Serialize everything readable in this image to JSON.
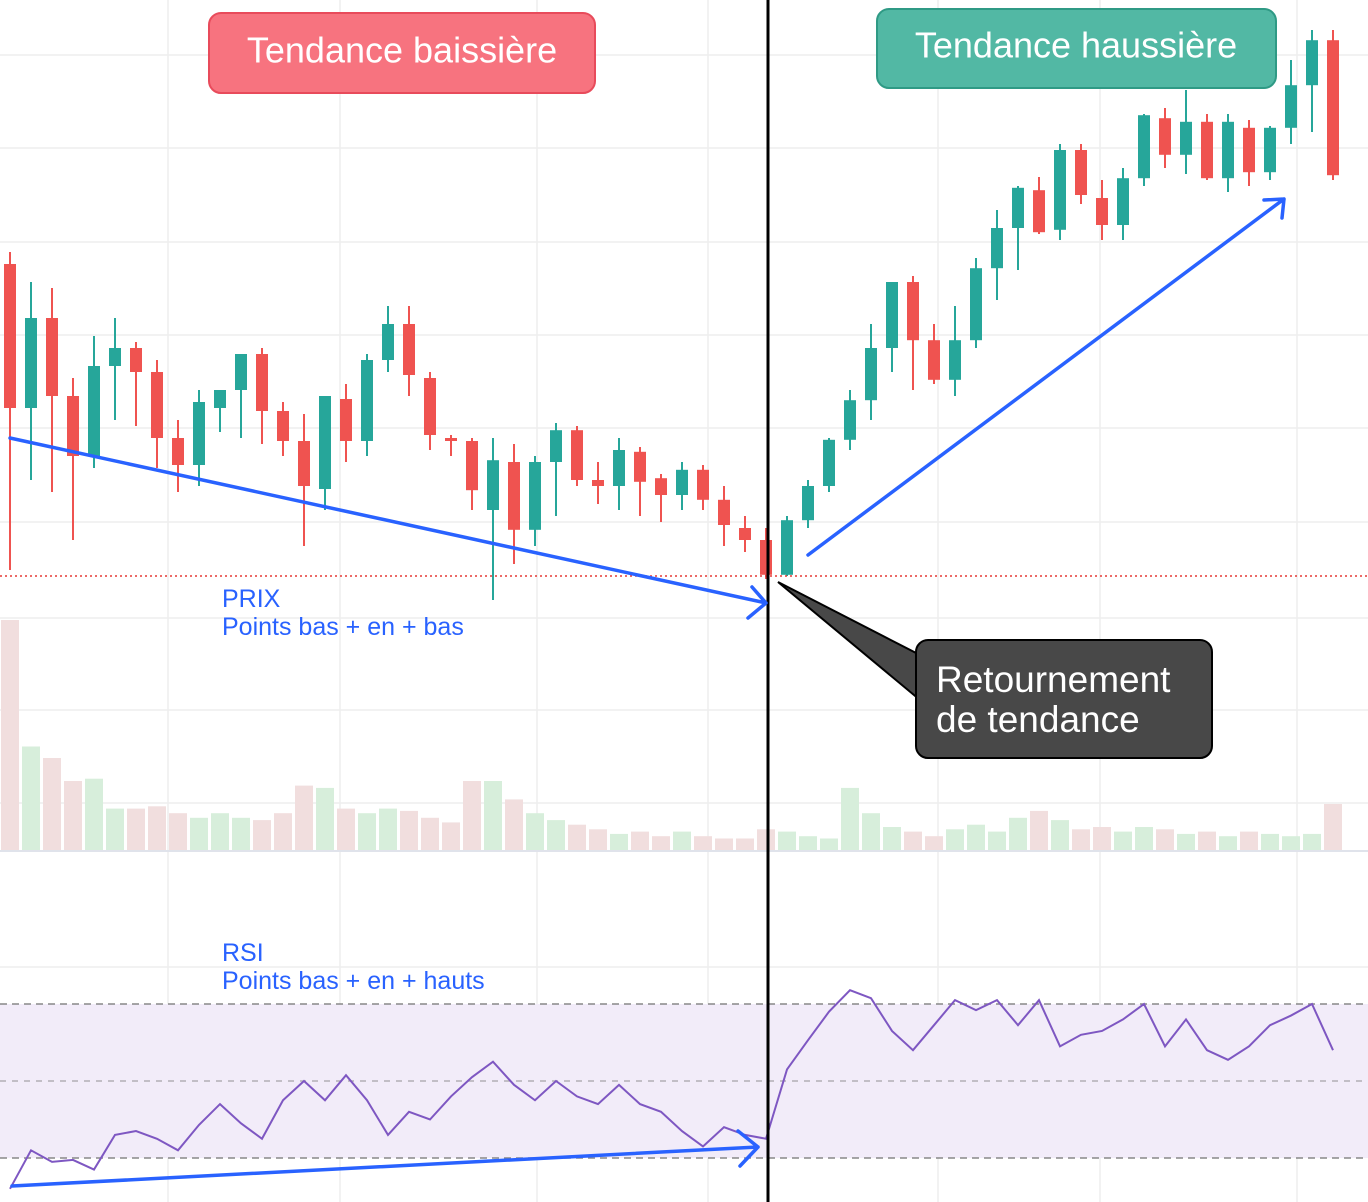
{
  "chart_data": {
    "type": "candlestick",
    "labels": {
      "down": "Tendance baissière",
      "up": "Tendance haussière",
      "price_title": "PRIX",
      "price_note": "Points bas + en + bas",
      "rsi_title": "RSI",
      "rsi_note": "Points bas + en + hauts",
      "callout": [
        "Retournement",
        "de tendance"
      ]
    },
    "up_color": "#26a69a",
    "down_color": "#ef5350",
    "rsi_color": "#7e57c2",
    "ylim": [
      0,
      100
    ],
    "volume_lim": [
      0,
      100
    ],
    "rsi_lim": [
      0,
      100
    ],
    "rsi_levels": [
      30,
      50,
      70
    ],
    "open": [
      56,
      32,
      47,
      34,
      24,
      39,
      42,
      38,
      27,
      22.5,
      32,
      35,
      41,
      31.5,
      26.5,
      18.5,
      33.5,
      26.5,
      40,
      46,
      37,
      27,
      26.5,
      15,
      23,
      11.7,
      23,
      28.3,
      20,
      19,
      24.7,
      20.3,
      17.5,
      21.7,
      16.7,
      12,
      10,
      4.2,
      13.3,
      19,
      26.7,
      33.3,
      42,
      53,
      43.3,
      36.7,
      43.3,
      55.3,
      62,
      68.3,
      61.7,
      75,
      67,
      62.5,
      70.3,
      80.3,
      74.2,
      79.7,
      70.3,
      78.7,
      71.3,
      78.7,
      85.8,
      93.3
    ],
    "high": [
      58,
      53,
      52,
      37,
      44,
      47,
      43,
      40,
      30,
      35,
      35,
      41,
      42,
      33,
      31,
      34,
      36,
      41,
      49,
      49,
      38,
      27.5,
      27,
      27,
      26,
      24,
      29.5,
      29,
      23,
      27,
      25.5,
      21,
      23,
      22.5,
      19,
      14,
      12,
      14,
      20,
      27,
      35,
      46,
      53,
      54,
      46,
      49,
      57,
      65,
      69,
      70.5,
      76,
      76,
      70,
      72,
      81,
      82,
      85,
      81,
      81,
      80,
      79,
      90,
      95,
      95
    ],
    "low": [
      5,
      20,
      18,
      10,
      22,
      30,
      29,
      22,
      18,
      19,
      28,
      27,
      26,
      24,
      9,
      15,
      23,
      24,
      38,
      34,
      25,
      24,
      15,
      0,
      6,
      9,
      14,
      19,
      16,
      15,
      14,
      13,
      15,
      15,
      9,
      8,
      3.5,
      4,
      12,
      18,
      25,
      30,
      38,
      35,
      36,
      34,
      42,
      50,
      55,
      61,
      60,
      66,
      60,
      60,
      69,
      72,
      71,
      70,
      68,
      69,
      70,
      76,
      78,
      70
    ],
    "close": [
      32,
      47,
      34,
      24,
      39,
      42,
      38,
      27,
      22.5,
      33,
      35,
      41,
      31.5,
      26.5,
      19,
      34,
      26.5,
      40,
      46,
      37.5,
      27.5,
      26.5,
      18.3,
      23.3,
      11.7,
      23,
      28.3,
      20,
      19,
      25,
      19.7,
      17.5,
      21.7,
      16.7,
      12.5,
      10,
      4.2,
      13.3,
      19,
      26.7,
      33.3,
      42,
      53,
      43.3,
      36.7,
      43.3,
      55.3,
      62,
      68.7,
      61.3,
      75,
      67.5,
      62.5,
      70.3,
      80.8,
      74.2,
      79.7,
      70.3,
      79.7,
      71.3,
      78.7,
      85.8,
      93.3,
      70.8
    ],
    "volume": [
      100,
      45,
      40,
      30,
      31,
      18,
      18,
      19,
      16,
      14,
      16,
      14,
      13,
      16,
      28,
      27,
      18,
      16,
      18,
      17,
      14,
      12,
      30,
      30,
      22,
      16,
      13,
      11,
      9,
      7,
      8,
      6,
      8,
      6,
      5,
      5,
      9,
      8,
      6,
      5,
      27,
      16,
      10,
      8,
      6,
      9,
      11,
      8,
      14,
      17,
      13,
      9,
      10,
      8,
      10,
      9,
      7,
      8,
      6,
      8,
      7,
      6,
      7,
      20
    ],
    "rsi": [
      22,
      32,
      29,
      29.5,
      27,
      36,
      37,
      35,
      32,
      38.6,
      44,
      39,
      35,
      45,
      50,
      45,
      51.5,
      45,
      36,
      42,
      40,
      46,
      51,
      55,
      49,
      45,
      50,
      46,
      44,
      49,
      44,
      42,
      37,
      33,
      38,
      36,
      35,
      53,
      60.6,
      68,
      73.6,
      71.5,
      63,
      58,
      64.5,
      71,
      68.4,
      71,
      64.5,
      71,
      59,
      62,
      63,
      66,
      70,
      59,
      66,
      58,
      55.5,
      59,
      64.5,
      67,
      70,
      58
    ]
  }
}
